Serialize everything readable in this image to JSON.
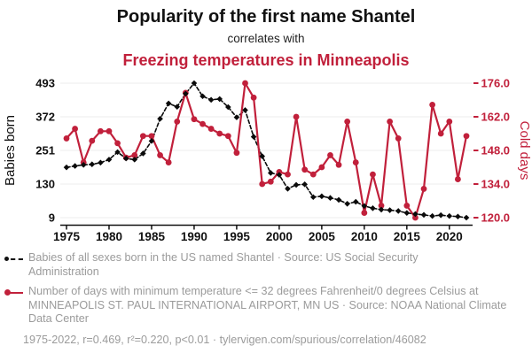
{
  "header": {
    "title": "Popularity of the first name Shantel",
    "subtitle": "correlates with",
    "correlate_title": "Freezing temperatures in Minneapolis"
  },
  "chart_data": {
    "type": "line",
    "x": [
      1975,
      1976,
      1977,
      1978,
      1979,
      1980,
      1981,
      1982,
      1983,
      1984,
      1985,
      1986,
      1987,
      1988,
      1989,
      1990,
      1991,
      1992,
      1993,
      1994,
      1995,
      1996,
      1997,
      1998,
      1999,
      2000,
      2001,
      2002,
      2003,
      2004,
      2005,
      2006,
      2007,
      2008,
      2009,
      2010,
      2011,
      2012,
      2013,
      2014,
      2015,
      2016,
      2017,
      2018,
      2019,
      2020,
      2021,
      2022
    ],
    "series": [
      {
        "name": "Babies of all sexes born in the US named Shantel",
        "axis": "left",
        "color": "#0a0a0a",
        "line_style": "dashed",
        "marker": "diamond",
        "values": [
          190,
          195,
          199,
          201,
          207,
          218,
          245,
          222,
          218,
          240,
          285,
          365,
          420,
          408,
          455,
          493,
          446,
          433,
          436,
          407,
          370,
          396,
          300,
          230,
          170,
          163,
          113,
          127,
          129,
          83,
          86,
          80,
          73,
          59,
          66,
          51,
          43,
          38,
          36,
          33,
          26,
          22,
          19,
          15,
          18,
          15,
          13,
          9
        ]
      },
      {
        "name": "Number of days with minimum temperature <= 32F in Minneapolis",
        "axis": "right",
        "color": "#c1203b",
        "line_style": "solid",
        "marker": "circle",
        "values": [
          153,
          157,
          143,
          152,
          156,
          156,
          151,
          145,
          146,
          154,
          154,
          146,
          143,
          160,
          172,
          161,
          159,
          157,
          155,
          154,
          147,
          176,
          170,
          134,
          135,
          139,
          138,
          162,
          140,
          138,
          141,
          146,
          142,
          160,
          143,
          122,
          138,
          125,
          160,
          153,
          125,
          120,
          132,
          167,
          155,
          160,
          136,
          154
        ]
      }
    ],
    "left_axis": {
      "label": "Babies born",
      "ticks": [
        9,
        130,
        251,
        372,
        493
      ],
      "tick_labels": [
        "9",
        "130",
        "251",
        "372",
        "493"
      ],
      "range": [
        9,
        493
      ]
    },
    "right_axis": {
      "label": "Cold days",
      "ticks": [
        120,
        134,
        148,
        162,
        176
      ],
      "tick_labels": [
        "120.0",
        "134.0",
        "148.0",
        "162.0",
        "176.0"
      ],
      "range": [
        120,
        176
      ]
    },
    "x_axis": {
      "ticks": [
        1975,
        1980,
        1985,
        1990,
        1995,
        2000,
        2005,
        2010,
        2015,
        2020
      ],
      "range": [
        1975,
        2022
      ]
    },
    "grid": true,
    "legend_position": "below"
  },
  "legend": {
    "items": [
      {
        "marker": "black-dashed-diamond",
        "label": "Babies of all sexes born in the US named Shantel · Source: US Social Security Administration"
      },
      {
        "marker": "red-solid-circle",
        "label": "Number of days with minimum temperature <= 32 degrees Fahrenheit/0 degrees Celsius at MINNEAPOLIS ST. PAUL INTERNATIONAL AIRPORT, MN US · Source: NOAA National Climate Data Center"
      }
    ]
  },
  "footer": {
    "stats": "1975-2022, r=0.469, r²=0.220, p<0.01",
    "separator": " · ",
    "link": "tylervigen.com/spurious/correlation/46082"
  },
  "colors": {
    "accent_red": "#c1203b",
    "muted_text": "#9b9b9b",
    "grid": "#ececec",
    "series_black": "#0a0a0a"
  }
}
